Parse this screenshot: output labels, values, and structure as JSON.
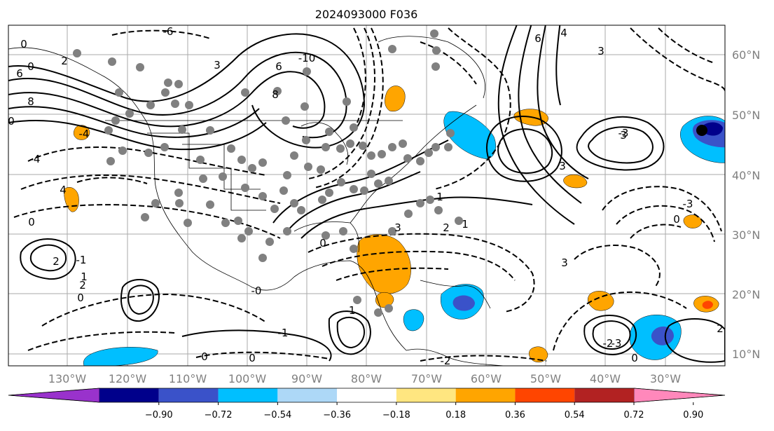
{
  "title": "2024093000 F036",
  "map": {
    "lat_labels": [
      "60°N",
      "50°N",
      "40°N",
      "30°N",
      "20°N",
      "10°N"
    ],
    "lon_labels": [
      "130°W",
      "120°W",
      "110°W",
      "100°W",
      "90°W",
      "80°W",
      "70°W",
      "60°W",
      "50°W",
      "40°W",
      "30°W"
    ],
    "contour_labels": [
      "0",
      "6",
      "8",
      "0",
      "0",
      "2",
      "-10",
      "6",
      "8",
      "3",
      "-6",
      "4",
      "6",
      "3",
      "-4",
      "3",
      "-3",
      "-4",
      "0",
      "4",
      "2",
      "-1",
      "1",
      "0",
      "3",
      "2",
      "1",
      "-1",
      "3",
      "-3",
      "0",
      "-2",
      "-0",
      "-1",
      "3",
      "-3",
      "2",
      "1",
      "0",
      "2",
      "0",
      "0",
      "-2",
      "0"
    ]
  },
  "colorbar": {
    "ticks": [
      "−0.90",
      "−0.72",
      "−0.54",
      "−0.36",
      "−0.18",
      "0.18",
      "0.36",
      "0.54",
      "0.72",
      "0.90"
    ],
    "colors": [
      "#9932cc",
      "#00008b",
      "#3a52c9",
      "#00bfff",
      "#add8f7",
      "#ffffff",
      "#ffe680",
      "#ffa500",
      "#ff4500",
      "#b22222",
      "#ff88bb"
    ]
  }
}
